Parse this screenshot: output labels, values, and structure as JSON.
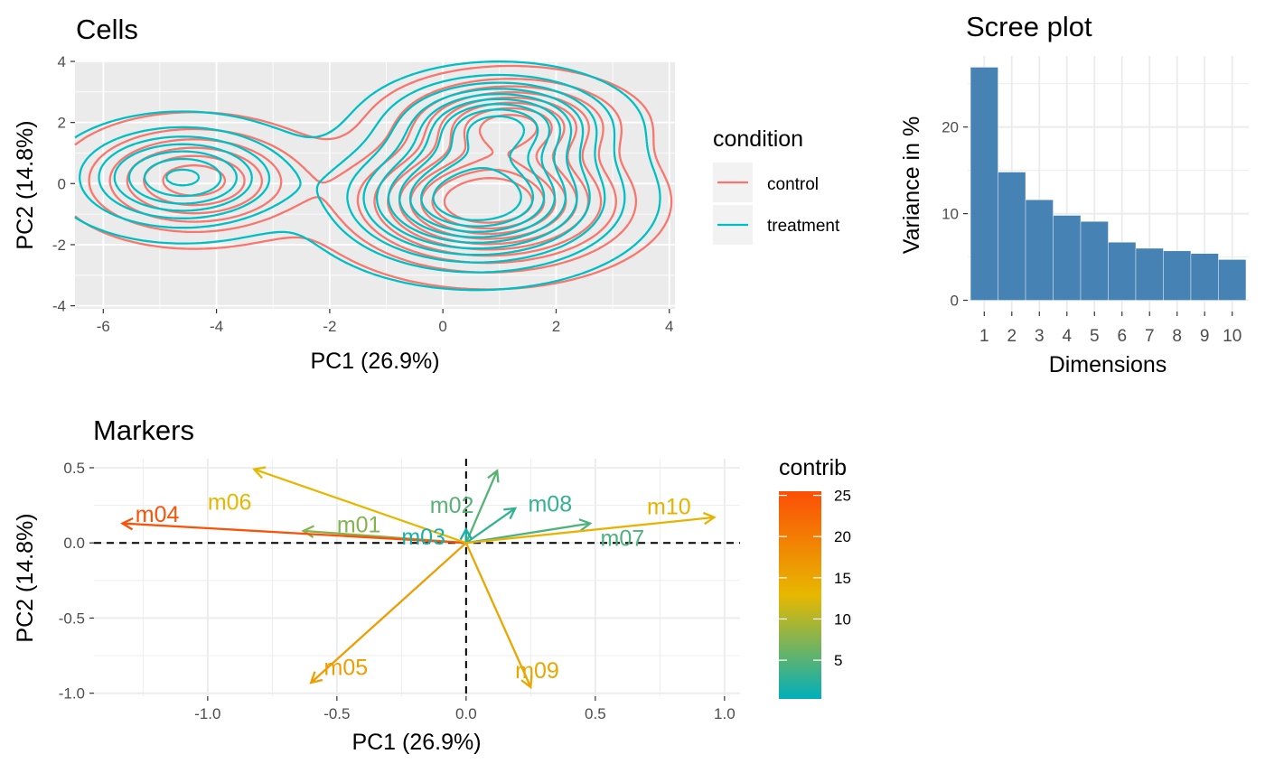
{
  "chart_data": [
    {
      "type": "contour",
      "title": "Cells",
      "xlabel": "PC1 (26.9%)",
      "ylabel": "PC2 (14.8%)",
      "xlim": [
        -6.5,
        4.1
      ],
      "ylim": [
        -4.1,
        4.0
      ],
      "x_ticks": [
        -6,
        -4,
        -2,
        0,
        2,
        4
      ],
      "y_ticks": [
        -4,
        -2,
        0,
        2,
        4
      ],
      "grid": true,
      "legend": {
        "title": "condition",
        "position": "right",
        "items": [
          {
            "label": "control",
            "color": "#F8766D"
          },
          {
            "label": "treatment",
            "color": "#00BFC4"
          }
        ]
      },
      "series": [
        {
          "name": "control",
          "color": "#F8766D",
          "density_peaks": [
            {
              "x": -4.4,
              "y": 0.1,
              "sx": 1.1,
              "sy": 1.0,
              "w": 0.55
            },
            {
              "x": 0.8,
              "y": -0.6,
              "sx": 1.3,
              "sy": 1.15,
              "w": 1.0
            },
            {
              "x": 1.2,
              "y": 2.0,
              "sx": 1.05,
              "sy": 0.8,
              "w": 0.65
            }
          ]
        },
        {
          "name": "treatment",
          "color": "#00BFC4",
          "density_peaks": [
            {
              "x": -4.6,
              "y": 0.2,
              "sx": 1.05,
              "sy": 0.95,
              "w": 0.6
            },
            {
              "x": 0.6,
              "y": -0.5,
              "sx": 1.3,
              "sy": 1.2,
              "w": 1.0
            },
            {
              "x": 1.0,
              "y": 2.0,
              "sx": 1.05,
              "sy": 0.85,
              "w": 0.7
            }
          ]
        }
      ]
    },
    {
      "type": "bar",
      "title": "Scree plot",
      "xlabel": "Dimensions",
      "ylabel": "Variance in %",
      "categories": [
        "1",
        "2",
        "3",
        "4",
        "5",
        "6",
        "7",
        "8",
        "9",
        "10"
      ],
      "values": [
        26.9,
        14.8,
        11.6,
        9.8,
        9.1,
        6.7,
        6.0,
        5.7,
        5.4,
        4.7
      ],
      "ylim": [
        -1.3,
        28.2
      ],
      "y_ticks": [
        0,
        10,
        20
      ],
      "bar_color": "#4682B4",
      "grid": true
    },
    {
      "type": "biplot",
      "title": "Markers",
      "xlabel": "PC1 (26.9%)",
      "ylabel": "PC2 (14.8%)",
      "xlim": [
        -1.44,
        1.06
      ],
      "ylim": [
        -1.02,
        0.56
      ],
      "x_ticks": [
        -1.0,
        -0.5,
        0.0,
        0.5,
        1.0
      ],
      "x_tick_labels": [
        "-1.0",
        "-0.5",
        "0.0",
        "0.5",
        "1.0"
      ],
      "y_ticks": [
        -1.0,
        -0.5,
        0.0,
        0.5
      ],
      "y_tick_labels": [
        "-1.0",
        "-0.5",
        "0.0",
        "0.5"
      ],
      "grid": true,
      "legend": {
        "title": "contrib",
        "position": "right",
        "min": 0.3,
        "max": 25.5,
        "ticks": [
          5,
          10,
          15,
          20,
          25
        ],
        "colors": [
          "#00AFBB",
          "#E7B800",
          "#FC4E07"
        ]
      },
      "vectors": [
        {
          "name": "m01",
          "x": -0.63,
          "y": 0.08,
          "contrib": 7.5
        },
        {
          "name": "m02",
          "x": 0.12,
          "y": 0.48,
          "contrib": 5.0
        },
        {
          "name": "m03",
          "x": 0.0,
          "y": 0.09,
          "contrib": 1.5
        },
        {
          "name": "m04",
          "x": -1.33,
          "y": 0.13,
          "contrib": 25.0
        },
        {
          "name": "m05",
          "x": -0.6,
          "y": -0.93,
          "contrib": 16.0
        },
        {
          "name": "m06",
          "x": -0.82,
          "y": 0.49,
          "contrib": 13.0
        },
        {
          "name": "m07",
          "x": 0.48,
          "y": 0.13,
          "contrib": 4.5
        },
        {
          "name": "m08",
          "x": 0.19,
          "y": 0.23,
          "contrib": 3.0
        },
        {
          "name": "m09",
          "x": 0.25,
          "y": -0.96,
          "contrib": 15.0
        },
        {
          "name": "m10",
          "x": 0.96,
          "y": 0.17,
          "contrib": 13.5
        }
      ]
    }
  ]
}
